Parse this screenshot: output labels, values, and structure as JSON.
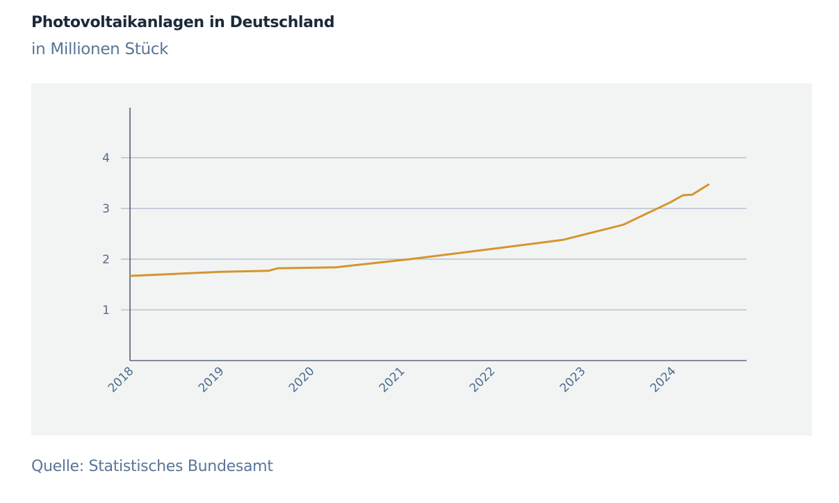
{
  "header": {
    "title": "Photovoltaikanlagen in Deutschland",
    "subtitle": "in Millionen Stück"
  },
  "footer": {
    "source": "Quelle: Statistisches Bundesamt"
  },
  "colors": {
    "line": "#d4952e",
    "grid": "#aab6c8",
    "axis": "#3c4a5a",
    "panel": "#f2f4f4",
    "tick_text": "#4e6b8c"
  },
  "chart_data": {
    "type": "line",
    "title": "Photovoltaikanlagen in Deutschland",
    "subtitle": "in Millionen Stück",
    "xlabel": "",
    "ylabel": "",
    "x_ticks": [
      2018,
      2019,
      2020,
      2021,
      2022,
      2023,
      2024
    ],
    "x_tick_labels": [
      "2018",
      "2019",
      "2020",
      "2021",
      "2022",
      "2023",
      "2024"
    ],
    "y_ticks": [
      1,
      2,
      3,
      4
    ],
    "y_tick_labels": [
      "1",
      "2",
      "3",
      "4"
    ],
    "xlim": [
      2018,
      2024.9
    ],
    "ylim": [
      0,
      5
    ],
    "grid": "horizontal",
    "legend": "none",
    "series": [
      {
        "name": "Photovoltaikanlagen",
        "x": [
          2018.0,
          2019.0,
          2019.53,
          2019.64,
          2020.28,
          2021.1,
          2022.0,
          2022.79,
          2023.46,
          2023.98,
          2024.12,
          2024.22,
          2024.41
        ],
        "values": [
          1.67,
          1.75,
          1.77,
          1.82,
          1.84,
          2.0,
          2.2,
          2.38,
          2.68,
          3.12,
          3.26,
          3.27,
          3.48
        ]
      }
    ],
    "source": "Quelle: Statistisches Bundesamt"
  }
}
